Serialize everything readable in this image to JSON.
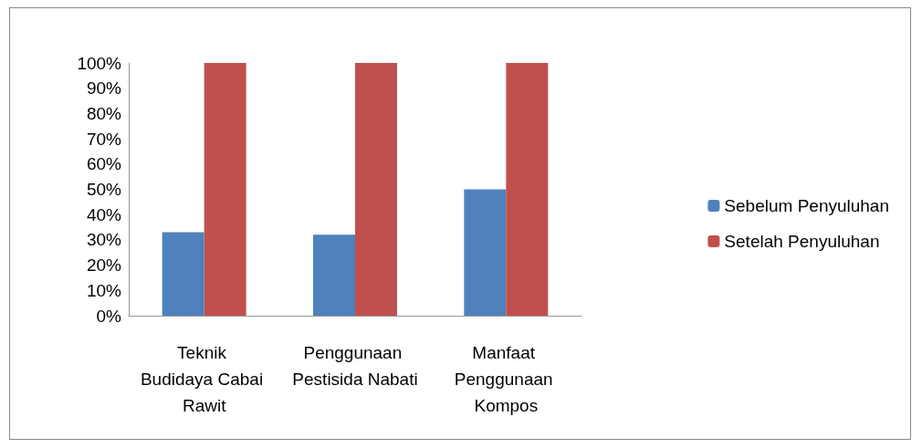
{
  "chart_data": {
    "type": "bar",
    "categories": [
      "Teknik Budidaya Cabai Rawit",
      "Penggunaan Pestisida Nabati",
      "Manfaat Penggunaan Kompos"
    ],
    "series": [
      {
        "name": "Sebelum Penyuluhan",
        "color": "#4f81bd",
        "values": [
          33,
          32,
          50
        ]
      },
      {
        "name": "Setelah Penyuluhan",
        "color": "#c0504d",
        "values": [
          100,
          100,
          100
        ]
      }
    ],
    "ylim": [
      0,
      100
    ],
    "yticks": [
      {
        "value": 0,
        "label": "0%"
      },
      {
        "value": 10,
        "label": "10%"
      },
      {
        "value": 20,
        "label": "20%"
      },
      {
        "value": 30,
        "label": "30%"
      },
      {
        "value": 40,
        "label": "40%"
      },
      {
        "value": 50,
        "label": "50%"
      },
      {
        "value": 60,
        "label": "60%"
      },
      {
        "value": 70,
        "label": "70%"
      },
      {
        "value": 80,
        "label": "80%"
      },
      {
        "value": 90,
        "label": "90%"
      },
      {
        "value": 100,
        "label": "100%"
      }
    ],
    "grid": false,
    "legend": "right"
  }
}
